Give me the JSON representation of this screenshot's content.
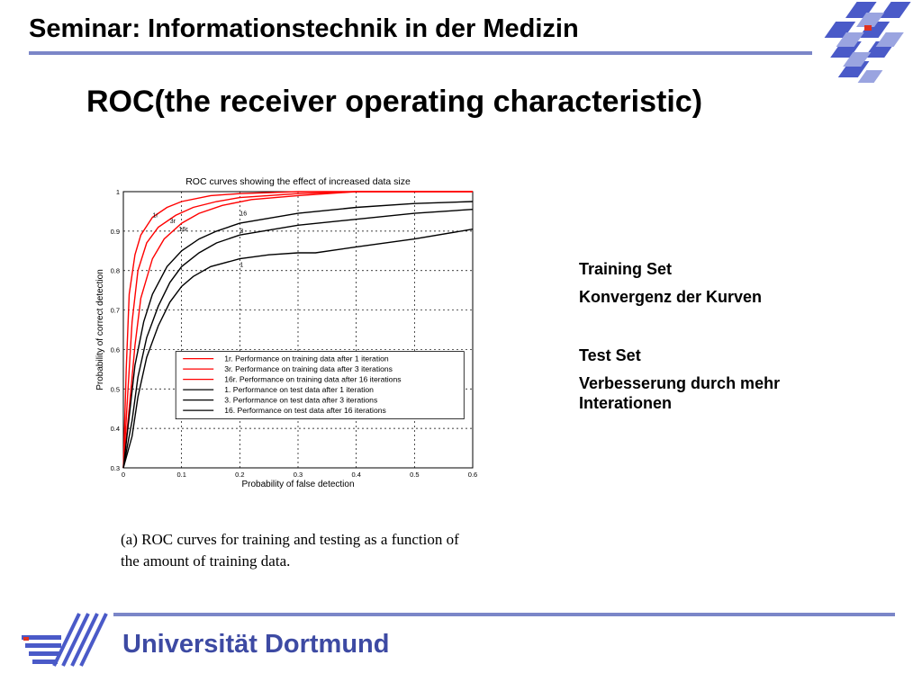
{
  "header": {
    "title": "Seminar: Informationstechnik in der Medizin"
  },
  "slide": {
    "title": "ROC(the receiver operating characteristic)"
  },
  "notes": {
    "training_heading": "Training Set",
    "training_text": "Konvergenz der Kurven",
    "test_heading": "Test Set",
    "test_text": "Verbesserung durch mehr Interationen"
  },
  "caption": "(a) ROC curves for training and testing as a function of the amount of training data.",
  "footer": {
    "university": "Universität Dortmund"
  },
  "colors": {
    "accent": "#7b86c8",
    "brand_blue": "#3d4aa3",
    "train": "#ff0000",
    "test": "#000000"
  },
  "chart_data": {
    "type": "line",
    "title": "ROC curves showing the effect of increased data size",
    "xlabel": "Probability of false detection",
    "ylabel": "Probability of correct detection",
    "xlim": [
      0,
      0.6
    ],
    "ylim": [
      0.3,
      1
    ],
    "xticks": [
      "0",
      "0.1",
      "0.2",
      "0.3",
      "0.4",
      "0.5",
      "0.6"
    ],
    "yticks": [
      "0.3",
      "0.4",
      "0.5",
      "0.6",
      "0.7",
      "0.8",
      "0.9",
      "1"
    ],
    "grid": true,
    "legend_position": "bottom-right",
    "series": [
      {
        "name": "1r. Performance on training data after 1 iteration",
        "label": "1r",
        "color": "#ff0000",
        "x": [
          0,
          0.005,
          0.01,
          0.02,
          0.03,
          0.05,
          0.075,
          0.1,
          0.15,
          0.2,
          0.3,
          0.4,
          0.6
        ],
        "y": [
          0.3,
          0.55,
          0.74,
          0.84,
          0.89,
          0.935,
          0.96,
          0.975,
          0.99,
          0.995,
          1,
          1,
          1
        ]
      },
      {
        "name": "3r. Performance on training data after 3 iterations",
        "label": "3r",
        "color": "#ff0000",
        "x": [
          0,
          0.008,
          0.015,
          0.025,
          0.04,
          0.06,
          0.09,
          0.12,
          0.16,
          0.2,
          0.3,
          0.4,
          0.6
        ],
        "y": [
          0.3,
          0.5,
          0.67,
          0.8,
          0.87,
          0.91,
          0.94,
          0.96,
          0.975,
          0.985,
          0.995,
          1,
          1
        ]
      },
      {
        "name": "16r. Performance on training data after 16 iterations",
        "label": "16r",
        "color": "#ff0000",
        "x": [
          0,
          0.01,
          0.02,
          0.03,
          0.05,
          0.07,
          0.1,
          0.13,
          0.17,
          0.22,
          0.3,
          0.4,
          0.6
        ],
        "y": [
          0.3,
          0.45,
          0.61,
          0.73,
          0.83,
          0.88,
          0.92,
          0.945,
          0.965,
          0.98,
          0.99,
          1,
          1
        ]
      },
      {
        "name": "1. Performance on test data after 1 iteration",
        "label": "1",
        "color": "#000000",
        "x": [
          0,
          0.01,
          0.02,
          0.035,
          0.05,
          0.075,
          0.1,
          0.13,
          0.16,
          0.2,
          0.3,
          0.4,
          0.5,
          0.6
        ],
        "y": [
          0.3,
          0.43,
          0.56,
          0.67,
          0.74,
          0.81,
          0.85,
          0.88,
          0.9,
          0.92,
          0.945,
          0.96,
          0.97,
          0.975
        ]
      },
      {
        "name": "3. Performance on test data after 3 iterations",
        "label": "3",
        "color": "#000000",
        "x": [
          0,
          0.015,
          0.025,
          0.04,
          0.06,
          0.08,
          0.1,
          0.13,
          0.16,
          0.2,
          0.3,
          0.4,
          0.5,
          0.6
        ],
        "y": [
          0.3,
          0.42,
          0.53,
          0.63,
          0.71,
          0.77,
          0.81,
          0.845,
          0.87,
          0.89,
          0.915,
          0.93,
          0.945,
          0.955
        ]
      },
      {
        "name": "16. Performance on test data after 16 iterations",
        "label": "16",
        "color": "#000000",
        "x": [
          0,
          0.015,
          0.025,
          0.04,
          0.06,
          0.08,
          0.1,
          0.12,
          0.15,
          0.2,
          0.25,
          0.3,
          0.33,
          0.4,
          0.5,
          0.6
        ],
        "y": [
          0.3,
          0.38,
          0.48,
          0.58,
          0.66,
          0.72,
          0.76,
          0.785,
          0.81,
          0.83,
          0.84,
          0.845,
          0.845,
          0.86,
          0.88,
          0.905
        ]
      }
    ]
  }
}
